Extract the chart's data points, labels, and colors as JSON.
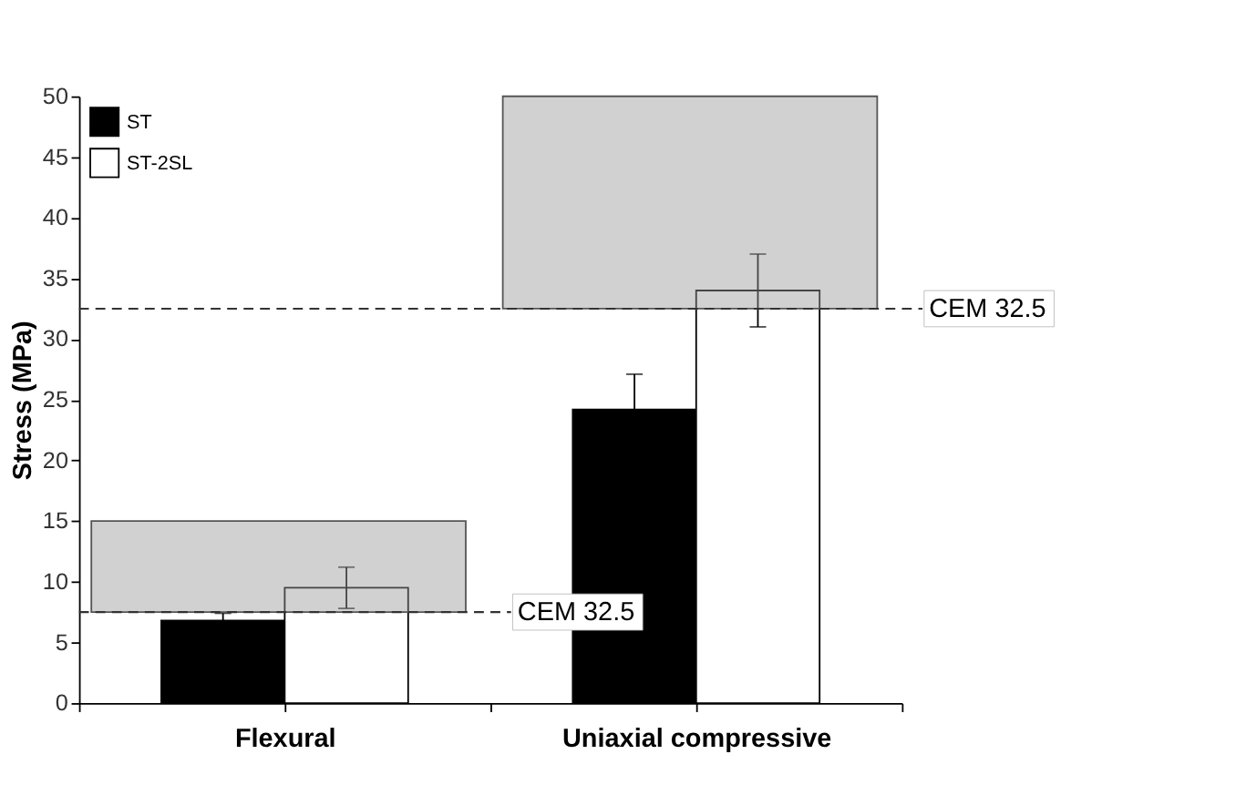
{
  "chart_data": {
    "type": "bar",
    "ylabel": "Stress (MPa)",
    "categories": [
      "Flexural",
      "Uniaxial compressive"
    ],
    "series": [
      {
        "name": "ST",
        "color": "#000000",
        "values": [
          6.8,
          24.2
        ],
        "errors": [
          0.6,
          2.9
        ]
      },
      {
        "name": "ST-2SL",
        "color": "#ffffff",
        "values": [
          9.5,
          34.0
        ],
        "errors": [
          1.7,
          3.0
        ]
      }
    ],
    "ylim": [
      0,
      50
    ],
    "yticks": [
      0,
      5,
      10,
      15,
      20,
      25,
      30,
      35,
      40,
      45,
      50
    ],
    "ref_lines": [
      {
        "axis": "y",
        "value": 7.5,
        "label": "CEM 32.5",
        "line_style": "dashed"
      },
      {
        "axis": "y",
        "value": 32.5,
        "label": "CEM 32.5",
        "line_style": "dashed"
      }
    ],
    "bands": [
      {
        "axis": "y",
        "from": 7.5,
        "to": 15,
        "color": "#9a9a9a"
      },
      {
        "axis": "y",
        "from": 32.5,
        "to": 50,
        "color": "#9a9a9a"
      }
    ],
    "legend": "top left",
    "grid": false
  }
}
